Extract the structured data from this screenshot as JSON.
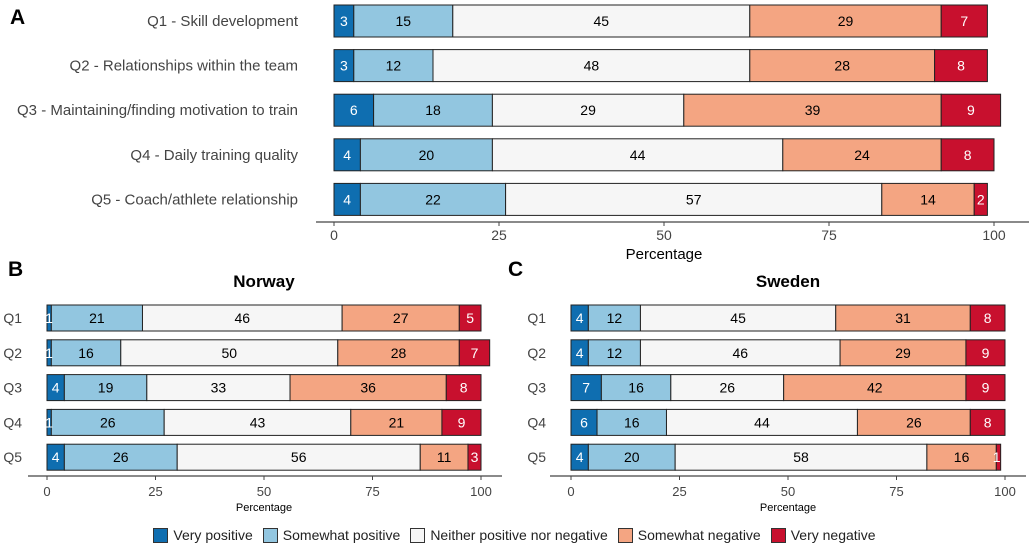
{
  "legend": [
    {
      "label": "Very positive",
      "color": "#0f6eb0",
      "text_color": "#ffffff"
    },
    {
      "label": "Somewhat positive",
      "color": "#92c6e0",
      "text_color": "#000000"
    },
    {
      "label": "Neither positive nor negative",
      "color": "#f6f6f6",
      "text_color": "#000000"
    },
    {
      "label": "Somewhat negative",
      "color": "#f4a582",
      "text_color": "#000000"
    },
    {
      "label": "Very negative",
      "color": "#c8102e",
      "text_color": "#ffffff"
    }
  ],
  "chart_data": [
    {
      "type": "bar",
      "orientation": "horizontal-stacked",
      "panel_letter": "A",
      "title": "",
      "xlabel": "Percentage",
      "ylabel": "",
      "xlim": [
        0,
        100
      ],
      "xticks": [
        0,
        25,
        50,
        75,
        100
      ],
      "categories": [
        "Q1 - Skill development",
        "Q2 - Relationships within the team",
        "Q3 - Maintaining/finding motivation to train",
        "Q4 - Daily training quality",
        "Q5 - Coach/athlete relationship"
      ],
      "series": [
        {
          "name": "Very positive",
          "values": [
            3,
            3,
            6,
            4,
            4
          ]
        },
        {
          "name": "Somewhat positive",
          "values": [
            15,
            12,
            18,
            20,
            22
          ]
        },
        {
          "name": "Neither positive nor negative",
          "values": [
            45,
            48,
            29,
            44,
            57
          ]
        },
        {
          "name": "Somewhat negative",
          "values": [
            29,
            28,
            39,
            24,
            14
          ]
        },
        {
          "name": "Very negative",
          "values": [
            7,
            8,
            9,
            8,
            2
          ]
        }
      ]
    },
    {
      "type": "bar",
      "orientation": "horizontal-stacked",
      "panel_letter": "B",
      "title": "Norway",
      "xlabel": "Percentage",
      "ylabel": "",
      "xlim": [
        0,
        100
      ],
      "xticks": [
        0,
        25,
        50,
        75,
        100
      ],
      "categories": [
        "Q1",
        "Q2",
        "Q3",
        "Q4",
        "Q5"
      ],
      "series": [
        {
          "name": "Very positive",
          "values": [
            1,
            1,
            4,
            1,
            4
          ]
        },
        {
          "name": "Somewhat positive",
          "values": [
            21,
            16,
            19,
            26,
            26
          ]
        },
        {
          "name": "Neither positive nor negative",
          "values": [
            46,
            50,
            33,
            43,
            56
          ]
        },
        {
          "name": "Somewhat negative",
          "values": [
            27,
            28,
            36,
            21,
            11
          ]
        },
        {
          "name": "Very negative",
          "values": [
            5,
            7,
            8,
            9,
            3
          ]
        }
      ]
    },
    {
      "type": "bar",
      "orientation": "horizontal-stacked",
      "panel_letter": "C",
      "title": "Sweden",
      "xlabel": "Percentage",
      "ylabel": "",
      "xlim": [
        0,
        100
      ],
      "xticks": [
        0,
        25,
        50,
        75,
        100
      ],
      "categories": [
        "Q1",
        "Q2",
        "Q3",
        "Q4",
        "Q5"
      ],
      "series": [
        {
          "name": "Very positive",
          "values": [
            4,
            4,
            7,
            6,
            4
          ]
        },
        {
          "name": "Somewhat positive",
          "values": [
            12,
            12,
            16,
            16,
            20
          ]
        },
        {
          "name": "Neither positive nor negative",
          "values": [
            45,
            46,
            26,
            44,
            58
          ]
        },
        {
          "name": "Somewhat negative",
          "values": [
            31,
            29,
            42,
            26,
            16
          ]
        },
        {
          "name": "Very negative",
          "values": [
            8,
            9,
            9,
            8,
            1
          ]
        }
      ]
    }
  ]
}
